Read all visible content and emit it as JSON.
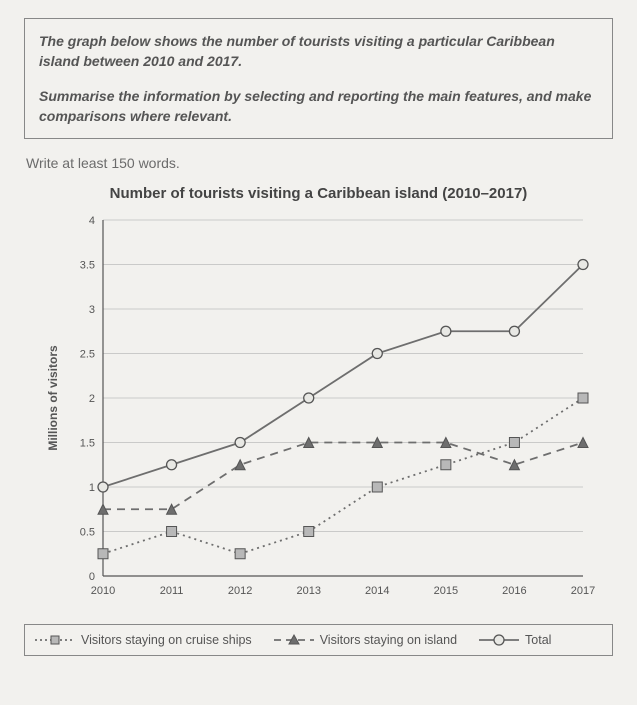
{
  "prompt": {
    "p1": "The graph below shows the number of tourists visiting a particular Caribbean island between 2010 and 2017.",
    "p2": "Summarise the information by selecting and reporting the main features, and make comparisons where relevant."
  },
  "instruction": "Write at least 150 words.",
  "chart": {
    "type": "line",
    "title": "Number of tourists visiting a Caribbean island (2010–2017)",
    "x_categories": [
      "2010",
      "2011",
      "2012",
      "2013",
      "2014",
      "2015",
      "2016",
      "2017"
    ],
    "y_label": "Millions of visitors",
    "ylim": [
      0,
      4
    ],
    "ytick_step": 0.5,
    "background_color": "#f2f1ee",
    "grid_color": "#bdbdbd",
    "axis_color": "#555555",
    "text_color": "#555555",
    "label_fontsize": 12,
    "tick_fontsize": 11,
    "marker_size": 5,
    "line_width": 1.8,
    "series": [
      {
        "key": "cruise",
        "label": "Visitors staying on cruise ships",
        "style": "dotted",
        "marker": "square",
        "color": "#6e6e6e",
        "values": [
          0.25,
          0.5,
          0.25,
          0.5,
          1.0,
          1.25,
          1.5,
          2.0
        ]
      },
      {
        "key": "island",
        "label": "Visitors staying on island",
        "style": "dashed",
        "marker": "triangle",
        "color": "#6e6e6e",
        "values": [
          0.75,
          0.75,
          1.25,
          1.5,
          1.5,
          1.5,
          1.25,
          1.5
        ]
      },
      {
        "key": "total",
        "label": "Total",
        "style": "solid",
        "marker": "circle",
        "color": "#6e6e6e",
        "values": [
          1.0,
          1.25,
          1.5,
          2.0,
          2.5,
          2.75,
          2.75,
          3.5
        ]
      }
    ]
  }
}
